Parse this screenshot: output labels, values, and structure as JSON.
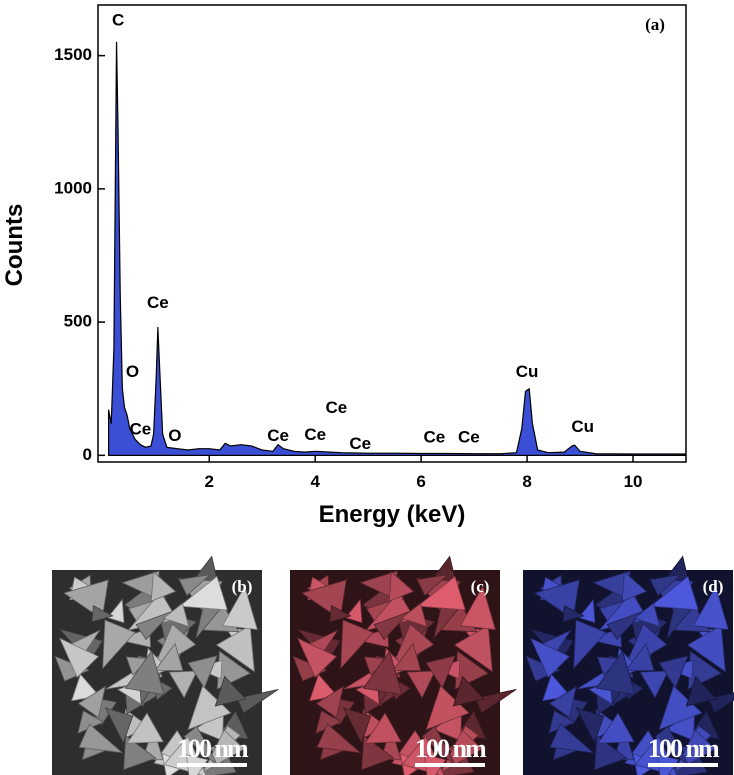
{
  "chart_data": {
    "type": "area",
    "panel_label": "(a)",
    "xlabel": "Energy (keV)",
    "ylabel": "Counts",
    "x": [
      0.1,
      0.15,
      0.2,
      0.25,
      0.28,
      0.32,
      0.36,
      0.4,
      0.45,
      0.5,
      0.55,
      0.6,
      0.7,
      0.8,
      0.9,
      0.95,
      1.0,
      1.03,
      1.07,
      1.12,
      1.2,
      1.4,
      1.6,
      1.8,
      2.0,
      2.2,
      2.3,
      2.4,
      2.6,
      2.8,
      3.0,
      3.2,
      3.3,
      3.4,
      3.6,
      3.8,
      4.0,
      4.5,
      5.0,
      5.5,
      6.0,
      6.5,
      7.0,
      7.5,
      7.8,
      7.9,
      7.97,
      8.04,
      8.1,
      8.2,
      8.4,
      8.7,
      8.85,
      8.9,
      9.0,
      9.3,
      10.0,
      11.0
    ],
    "values": [
      170,
      120,
      400,
      1550,
      1200,
      600,
      250,
      180,
      150,
      100,
      80,
      60,
      40,
      30,
      35,
      80,
      300,
      480,
      300,
      80,
      30,
      25,
      20,
      25,
      25,
      20,
      45,
      35,
      40,
      35,
      20,
      15,
      40,
      25,
      15,
      12,
      15,
      10,
      8,
      8,
      7,
      7,
      6,
      6,
      10,
      100,
      240,
      250,
      120,
      20,
      10,
      12,
      35,
      38,
      15,
      6,
      5,
      5
    ],
    "color": "#3a4fd6",
    "xlim": [
      -0.1,
      11
    ],
    "ylim": [
      -25,
      1690
    ],
    "xticks": [
      2,
      4,
      6,
      8,
      10
    ],
    "yticks": [
      0,
      500,
      1000,
      1500
    ],
    "annotations": [
      {
        "text": "C",
        "x": 0.28,
        "y": 1630
      },
      {
        "text": "O",
        "x": 0.55,
        "y": 310
      },
      {
        "text": "Ce",
        "x": 1.03,
        "y": 570
      },
      {
        "text": "Ce",
        "x": 0.7,
        "y": 95
      },
      {
        "text": "O",
        "x": 1.35,
        "y": 70
      },
      {
        "text": "Ce",
        "x": 3.3,
        "y": 70
      },
      {
        "text": "Ce",
        "x": 4.0,
        "y": 75
      },
      {
        "text": "Ce",
        "x": 4.4,
        "y": 175
      },
      {
        "text": "Ce",
        "x": 4.85,
        "y": 40
      },
      {
        "text": "Ce",
        "x": 6.25,
        "y": 65
      },
      {
        "text": "Ce",
        "x": 6.9,
        "y": 65
      },
      {
        "text": "Cu",
        "x": 8.0,
        "y": 310
      },
      {
        "text": "Cu",
        "x": 9.05,
        "y": 105
      }
    ]
  },
  "image_panels": [
    {
      "label": "(b)",
      "scale": "100 nm"
    },
    {
      "label": "(c)",
      "scale": "100 nm"
    },
    {
      "label": "(d)",
      "scale": "100 nm"
    }
  ]
}
